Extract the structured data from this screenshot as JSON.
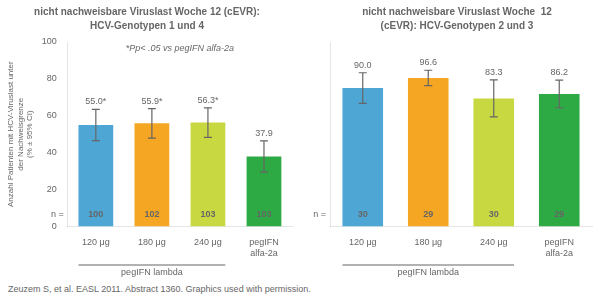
{
  "chart_data": [
    {
      "type": "bar",
      "title": "nicht nachweisbare Viruslast Woche 12 (cEVR):",
      "subtitle": "HCV-Genotypen 1 und 4",
      "ylabel": "Anzahl Patienten mit HCV-Viruslast unter\nder Nachweisgrenze\n(% ± 95% CI)",
      "categories": [
        "120 μg",
        "180 μg",
        "240 μg",
        "pegIFN\nalfa-2a"
      ],
      "values": [
        55.0,
        55.9,
        56.3,
        37.9
      ],
      "value_labels": [
        "55.0*",
        "55.9*",
        "56.3*",
        "37.9"
      ],
      "errors": [
        8.5,
        8.0,
        8.0,
        8.5
      ],
      "n": [
        100,
        102,
        103,
        103
      ],
      "n_label": "n =",
      "group": {
        "label": "pegIFN lambda",
        "categories": [
          "120 μg",
          "180 μg",
          "240 μg"
        ]
      },
      "footnote": "*Pp< .05 vs pegIFN alfa-2a",
      "source": "Zeuzem S, et al. EASL 2011. Abstract 1360. Graphics used with permission.",
      "colors": [
        "#4da6d4",
        "#f5a623",
        "#c8d840",
        "#2eaa44"
      ],
      "ylim": [
        0,
        100
      ],
      "yticks": [
        0,
        20,
        40,
        60,
        80,
        100
      ],
      "grid": false,
      "data_labels": true
    },
    {
      "type": "bar",
      "title": "nicht nachweisbare Viruslast Woche  12",
      "subtitle": "(cEVR): HCV-Genotypen 2 und 3",
      "categories": [
        "120 μg",
        "180 μg",
        "240 μg",
        "pegIFN\nalfa-2a"
      ],
      "values": [
        90.0,
        96.6,
        83.3,
        86.2
      ],
      "value_labels": [
        "90.0",
        "96.6",
        "83.3",
        "86.2"
      ],
      "errors": [
        10.0,
        5.0,
        12.0,
        9.0
      ],
      "n": [
        30,
        29,
        30,
        29
      ],
      "n_label": "n =",
      "group": {
        "label": "pegIFN lambda",
        "categories": [
          "120 μg",
          "180 μg",
          "240 μg"
        ]
      },
      "colors": [
        "#4da6d4",
        "#f5a623",
        "#c8d840",
        "#2eaa44"
      ],
      "ylim": [
        0,
        120
      ],
      "yticks": [
        0,
        20,
        40,
        60,
        80,
        100,
        120
      ],
      "grid": false,
      "data_labels": true,
      "tick_labels": "x"
    }
  ]
}
